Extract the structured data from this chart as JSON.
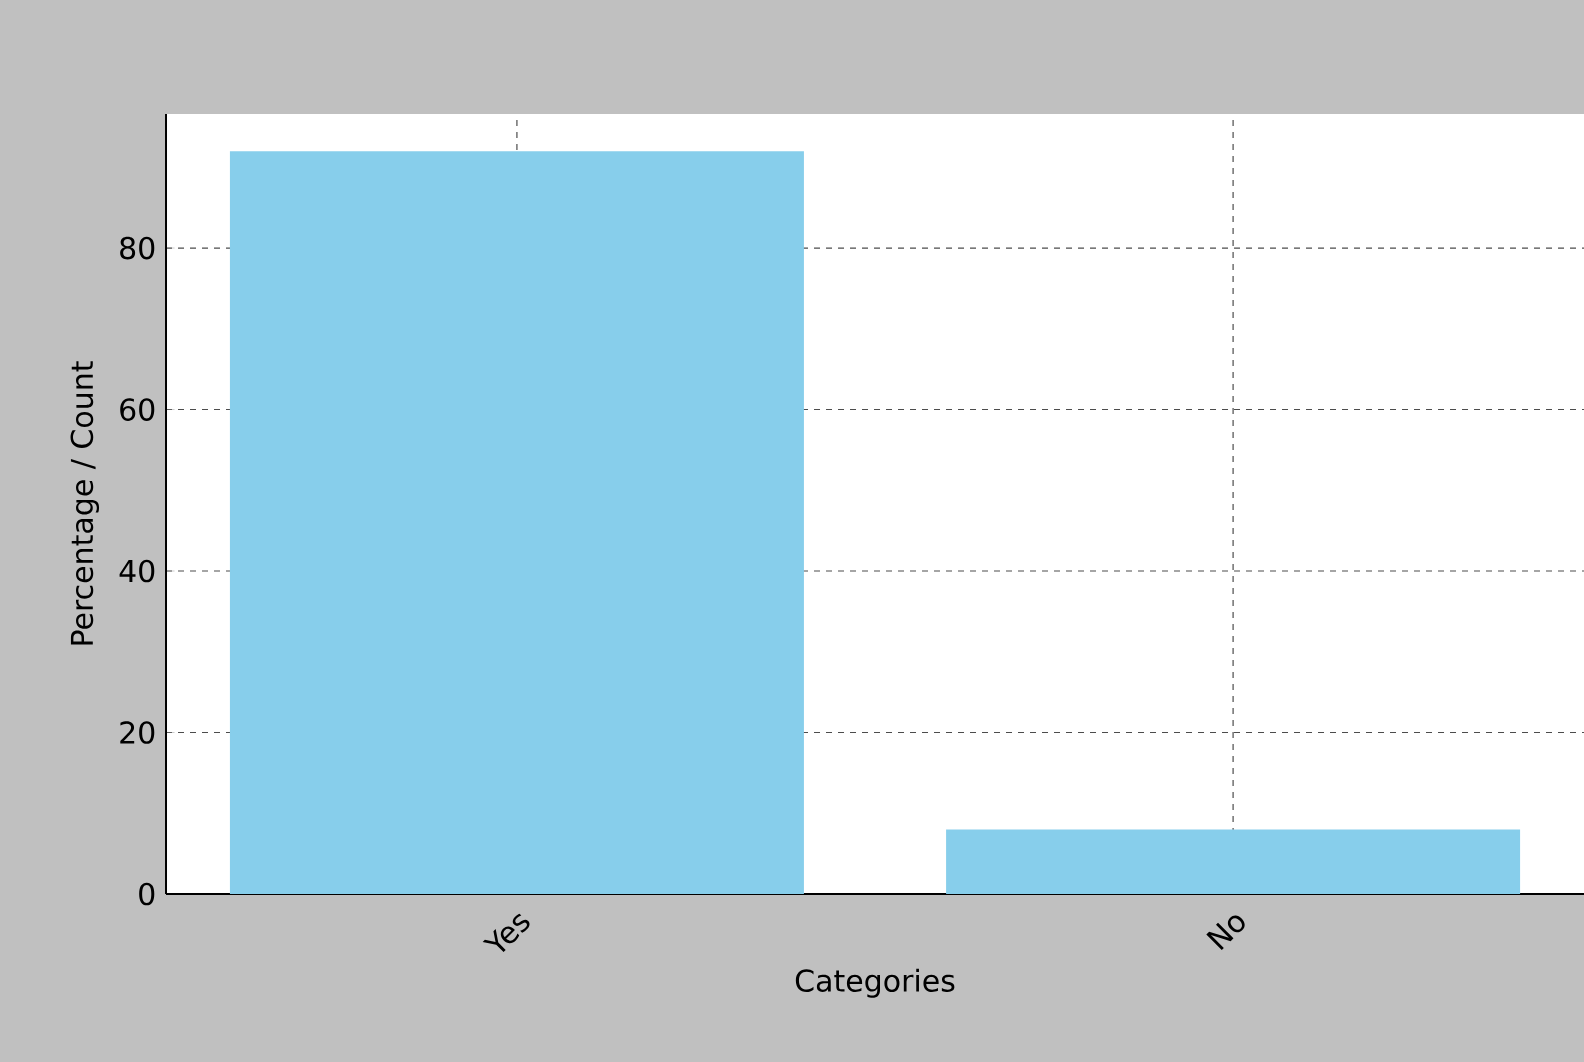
{
  "chart_data": {
    "type": "bar",
    "xlabel": "Categories",
    "ylabel": "Percentage / Count",
    "categories": [
      "Yes",
      "No"
    ],
    "values": [
      92,
      8
    ],
    "color": "#87ceeb",
    "ylim": [
      0,
      96.6
    ],
    "yticks": [
      0,
      20,
      40,
      60,
      80
    ],
    "grid": true
  }
}
